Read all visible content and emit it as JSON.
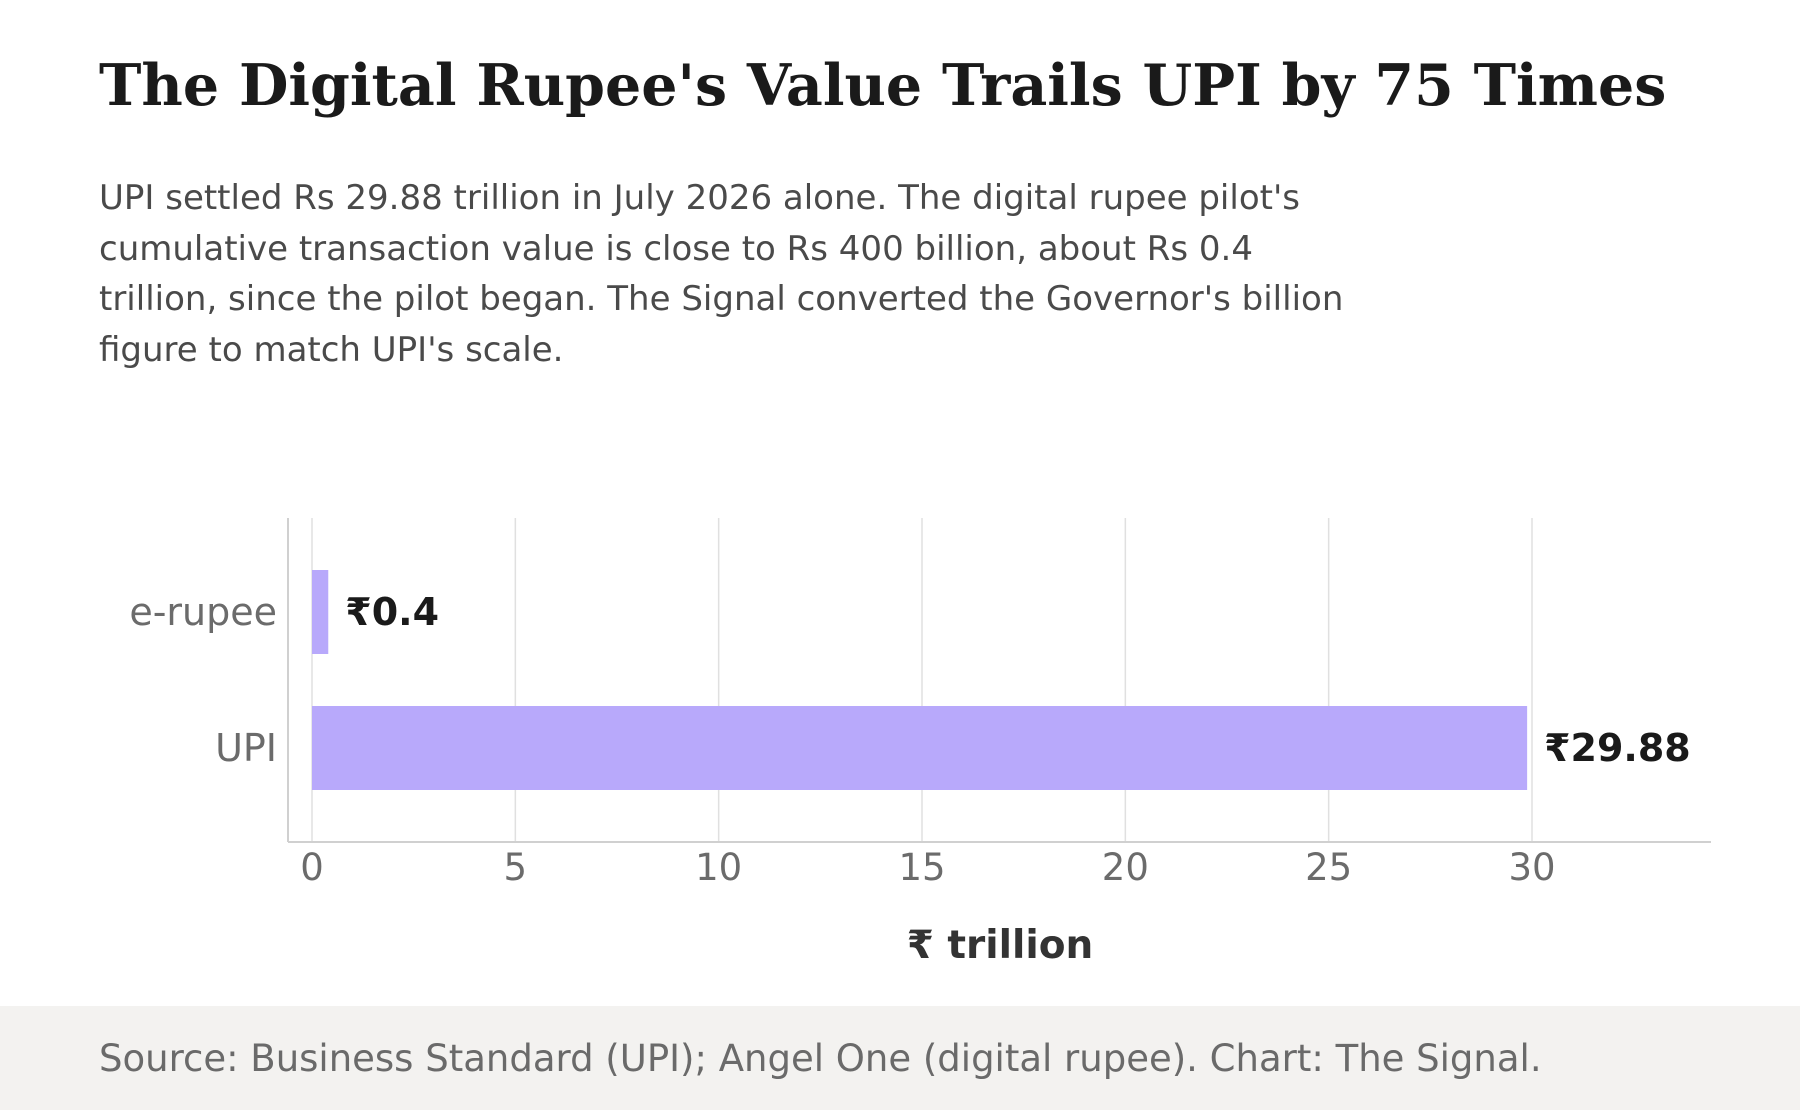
{
  "header": {
    "title": "The Digital Rupee's Value Trails UPI by 75 Times",
    "subtitle": "UPI settled Rs 29.88 trillion in July 2026 alone. The digital rupee pilot's cumulative transaction value is close to Rs 400 billion, about Rs 0.4 trillion, since the pilot began. The Signal converted the Governor's billion figure to match UPI's scale."
  },
  "chart_data": {
    "type": "bar",
    "orientation": "horizontal",
    "categories": [
      "e-rupee",
      "UPI"
    ],
    "values": [
      0.4,
      29.88
    ],
    "value_labels": [
      "₹0.4",
      "₹29.88"
    ],
    "xlabel": "₹ trillion",
    "ylabel": "",
    "xlim": [
      0,
      34
    ],
    "xticks": [
      0,
      5,
      10,
      15,
      20,
      25,
      30
    ],
    "grid": "vertical",
    "legend": "none",
    "colors": {
      "bar": "#b8a9fb",
      "grid": "#e0e0e0",
      "axis": "#d0d0d0",
      "tick_text": "#6b6b6b",
      "label_text": "#1a1a1a"
    }
  },
  "footer": {
    "source": "Source: Business Standard (UPI); Angel One (digital rupee). Chart: The Signal."
  }
}
